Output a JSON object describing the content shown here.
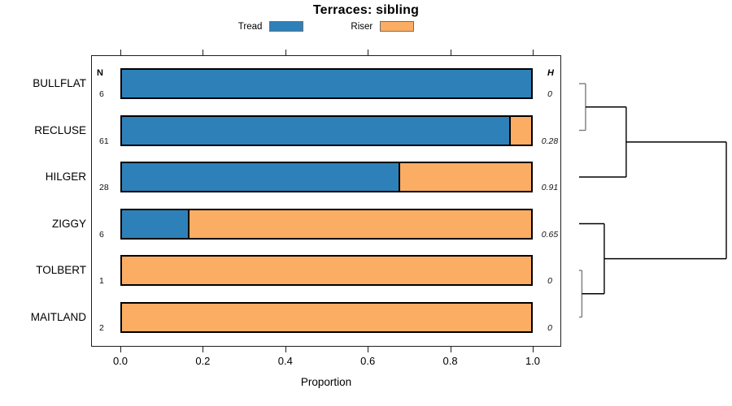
{
  "title": "Terraces: sibling",
  "axis": {
    "label": "Proportion",
    "ticks": [
      {
        "value": 0.0,
        "label": "0.0"
      },
      {
        "value": 0.2,
        "label": "0.2"
      },
      {
        "value": 0.4,
        "label": "0.4"
      },
      {
        "value": 0.6,
        "label": "0.6"
      },
      {
        "value": 0.8,
        "label": "0.8"
      },
      {
        "value": 1.0,
        "label": "1.0"
      }
    ]
  },
  "columns": {
    "n_header": "N",
    "h_header": "H"
  },
  "legend": [
    {
      "label": "Tread",
      "color": "#2e81b8"
    },
    {
      "label": "Riser",
      "color": "#fbad63"
    }
  ],
  "chart_data": {
    "type": "bar",
    "orientation": "horizontal",
    "stacked": true,
    "title": "Terraces: sibling",
    "xlabel": "Proportion",
    "xlim": [
      0,
      1
    ],
    "grid": false,
    "legend_position": "top",
    "categories": [
      "BULLFLAT",
      "RECLUSE",
      "HILGER",
      "ZIGGY",
      "TOLBERT",
      "MAITLAND"
    ],
    "series": [
      {
        "name": "Tread",
        "color": "#2e81b8",
        "values": [
          1.0,
          0.95,
          0.68,
          0.165,
          0.0,
          0.0
        ]
      },
      {
        "name": "Riser",
        "color": "#fbad63",
        "values": [
          0.0,
          0.05,
          0.32,
          0.835,
          1.0,
          1.0
        ]
      }
    ],
    "n_values": [
      "6",
      "61",
      "28",
      "6",
      "1",
      "2"
    ],
    "h_values": [
      "0",
      "0.28",
      "0.91",
      "0.65",
      "0",
      "0"
    ],
    "dendrogram": {
      "merges": [
        {
          "a": "BULLFLAT",
          "b": "RECLUSE",
          "height": 0.044,
          "color": "#7b7b7b"
        },
        {
          "a": "TOLBERT",
          "b": "MAITLAND",
          "height": 0.019,
          "color": "#7b7b7b"
        },
        {
          "a": "merge0",
          "b": "HILGER",
          "height": 0.32,
          "color": "#000000"
        },
        {
          "a": "ZIGGY",
          "b": "merge1",
          "height": 0.171,
          "color": "#000000"
        },
        {
          "a": "merge2",
          "b": "merge3",
          "height": 1.0,
          "color": "#000000"
        }
      ]
    }
  }
}
